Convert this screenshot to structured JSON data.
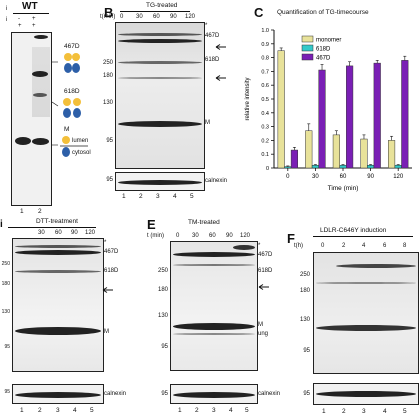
{
  "panels": {
    "A": {
      "label": "A",
      "group": "WT",
      "row_marks": [
        "i",
        "i"
      ],
      "row1": [
        "-",
        "+"
      ],
      "row2": [
        "+",
        "+"
      ],
      "side_labels": [
        "467D",
        "618D",
        "M",
        "lumen",
        "cytosol"
      ],
      "lanes": [
        "1",
        "2"
      ]
    },
    "B": {
      "label": "B",
      "title": "TG-treated",
      "time_label": "t(min)",
      "times": [
        "0",
        "30",
        "60",
        "90",
        "120"
      ],
      "mw": [
        "250",
        "180",
        "130",
        "95"
      ],
      "mw_bottom": "95",
      "bands": [
        "*",
        "467D",
        "618D",
        "M"
      ],
      "loading": "calnexin",
      "lanes": [
        "1",
        "2",
        "3",
        "4",
        "5"
      ]
    },
    "C": {
      "label": "C",
      "title": "Quantification of TG-timecourse"
    },
    "D": {
      "label": "i",
      "title": "DTT-treatment",
      "times": [
        "30",
        "60",
        "90",
        "120"
      ],
      "mw": [
        "250",
        "180",
        "130",
        "95"
      ],
      "mw_bottom": "95",
      "bands": [
        "*",
        "467D",
        "618D",
        "M"
      ],
      "loading": "calnexin",
      "lanes": [
        "1",
        "2",
        "3",
        "4",
        "5"
      ]
    },
    "E": {
      "label": "E",
      "title": "TM-treated",
      "time_label": "t (min)",
      "times": [
        "0",
        "30",
        "60",
        "90",
        "120"
      ],
      "mw": [
        "250",
        "180",
        "130",
        "95"
      ],
      "mw_bottom": "95",
      "bands": [
        "*",
        "467D",
        "618D",
        "M",
        "ung"
      ],
      "loading": "calnexin",
      "lanes": [
        "1",
        "2",
        "3",
        "4",
        "5"
      ]
    },
    "F": {
      "label": "F",
      "title": "LDLR-C646Y induction",
      "time_label": "t(h)",
      "times": [
        "0",
        "2",
        "4",
        "6",
        "8"
      ],
      "mw": [
        "250",
        "180",
        "130",
        "95"
      ],
      "mw_bottom": "95",
      "lanes": [
        "1",
        "2",
        "3",
        "4",
        "5"
      ]
    }
  },
  "chart_data": {
    "type": "bar",
    "title": "Quantification of TG-timecourse",
    "xlabel": "Time (min)",
    "ylabel": "relative intensity",
    "categories": [
      "0",
      "30",
      "60",
      "90",
      "120"
    ],
    "ylim": [
      0,
      1.0
    ],
    "yticks": [
      "0",
      "0.1",
      "0.2",
      "0.3",
      "0.4",
      "0.5",
      "0.6",
      "0.7",
      "0.8",
      "0.9",
      "1.0"
    ],
    "legend_position": "top-left",
    "series": [
      {
        "name": "monomer",
        "color": "#e8e29a",
        "values": [
          0.85,
          0.27,
          0.24,
          0.21,
          0.2
        ],
        "errors": [
          0.02,
          0.05,
          0.03,
          0.03,
          0.03
        ]
      },
      {
        "name": "618D",
        "color": "#33c9c9",
        "values": [
          0.01,
          0.02,
          0.02,
          0.02,
          0.02
        ],
        "errors": [
          0.005,
          0.005,
          0.005,
          0.005,
          0.005
        ]
      },
      {
        "name": "467D",
        "color": "#7a1fb5",
        "values": [
          0.13,
          0.71,
          0.74,
          0.76,
          0.78
        ],
        "errors": [
          0.02,
          0.04,
          0.03,
          0.02,
          0.03
        ]
      }
    ]
  }
}
